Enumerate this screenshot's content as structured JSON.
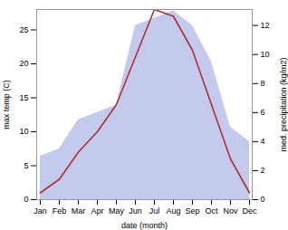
{
  "chart_data": {
    "type": "line",
    "xlabel": "date (month)",
    "ylabel": "max temp (C)",
    "y2label": "med. precipitation (kg/m2)",
    "categories": [
      "Jan",
      "Feb",
      "Mar",
      "Apr",
      "May",
      "Jun",
      "Jul",
      "Aug",
      "Sep",
      "Oct",
      "Nov",
      "Dec"
    ],
    "series": [
      {
        "type": "area",
        "axis": "y2",
        "color": "#b0b8e8",
        "values": [
          3.0,
          3.5,
          5.5,
          6.0,
          6.5,
          12.0,
          12.5,
          13.0,
          12.0,
          9.5,
          5.0,
          4.0
        ]
      },
      {
        "type": "line",
        "color": "#b03030",
        "values": [
          1,
          3,
          7,
          10,
          14,
          21,
          28,
          27,
          22,
          14,
          6,
          1
        ]
      }
    ],
    "ylim": [
      0,
      28
    ],
    "yticks": [
      0,
      5,
      10,
      15,
      20,
      25
    ],
    "y2lim": [
      0,
      13.1
    ],
    "y2ticks": [
      0,
      2,
      4,
      6,
      8,
      10,
      12
    ],
    "grid": false
  }
}
